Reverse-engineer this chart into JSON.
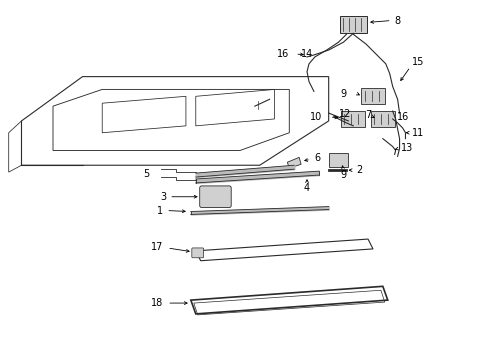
{
  "bg_color": "#ffffff",
  "lc": "#2a2a2a",
  "fig_w": 4.89,
  "fig_h": 3.6,
  "dpi": 100
}
